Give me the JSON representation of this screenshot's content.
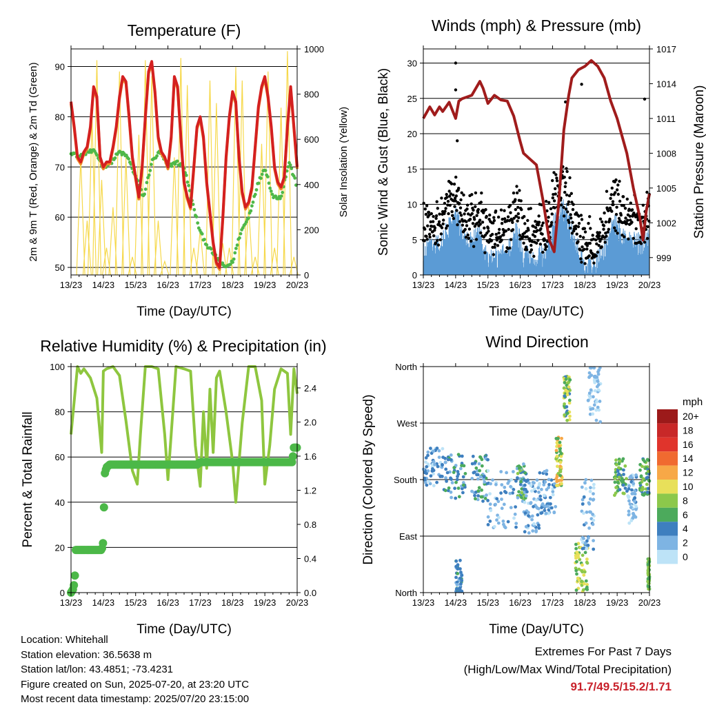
{
  "x_ticks": [
    "13/23",
    "14/23",
    "15/23",
    "16/23",
    "17/23",
    "18/23",
    "19/23",
    "20/23"
  ],
  "chart_data": [
    {
      "type": "line",
      "title": "Temperature (F)",
      "xlabel": "Time (Day/UTC)",
      "ylabel": "2m & 9m T (Red, Orange) & 2m Td (Green)",
      "y2label": "Solar Insolation (Yellow)",
      "ylim": [
        48.5,
        93.5
      ],
      "y2lim": [
        0,
        1000
      ],
      "yticks": [
        50,
        60,
        70,
        80,
        90
      ],
      "y2ticks": [
        0,
        200,
        400,
        600,
        800,
        1000
      ],
      "colors": {
        "t2m": "#d42020",
        "t9m": "#f08a28",
        "td": "#4fb848",
        "solar": "#f6d84a"
      },
      "series": {
        "temp_x": [
          0,
          0.1,
          0.2,
          0.3,
          0.4,
          0.5,
          0.6,
          0.7,
          0.8,
          0.9,
          1.0,
          1.1,
          1.2,
          1.3,
          1.4,
          1.5,
          1.6,
          1.7,
          1.8,
          1.9,
          2.0,
          2.1,
          2.2,
          2.3,
          2.4,
          2.5,
          2.6,
          2.7,
          2.8,
          2.9,
          3.0,
          3.1,
          3.2,
          3.3,
          3.4,
          3.5,
          3.6,
          3.7,
          3.8,
          3.9,
          4.0,
          4.1,
          4.2,
          4.3,
          4.4,
          4.5,
          4.6,
          4.7,
          4.8,
          4.9,
          5.0,
          5.1,
          5.2,
          5.3,
          5.4,
          5.5,
          5.6,
          5.7,
          5.8,
          5.9,
          6.0,
          6.1,
          6.2,
          6.3,
          6.4,
          6.5,
          6.6,
          6.7,
          6.8,
          6.9,
          7.0
        ],
        "temp_y": [
          83,
          78,
          72,
          71,
          73,
          74,
          78,
          86,
          84,
          72,
          70,
          71,
          71,
          74,
          78,
          84,
          88,
          87,
          80,
          72,
          68,
          64,
          70,
          80,
          89,
          91,
          85,
          76,
          73,
          72,
          70,
          76,
          88,
          86,
          76,
          67,
          64,
          62,
          70,
          78,
          80,
          76,
          67,
          61,
          55,
          51,
          50,
          60,
          72,
          80,
          85,
          83,
          72,
          65,
          62,
          63,
          66,
          74,
          82,
          86,
          88,
          84,
          78,
          70,
          67,
          66,
          68,
          78,
          86,
          78,
          70
        ],
        "dew_x": [
          0,
          0.25,
          0.5,
          0.75,
          1.0,
          1.25,
          1.5,
          1.75,
          2.0,
          2.25,
          2.5,
          2.75,
          3.0,
          3.25,
          3.5,
          3.75,
          4.0,
          4.25,
          4.5,
          4.75,
          5.0,
          5.25,
          5.5,
          5.75,
          6.0,
          6.25,
          6.5,
          6.75,
          7.0
        ],
        "dew_y": [
          73,
          72,
          73,
          73,
          70,
          71,
          73,
          72,
          68,
          64,
          71,
          73,
          70,
          71,
          70,
          63,
          57,
          54,
          52,
          50,
          51,
          57,
          60,
          66,
          70,
          64,
          64,
          71,
          66
        ],
        "solar_x": [
          0.3,
          0.5,
          0.65,
          0.8,
          0.95,
          1.1,
          1.3,
          1.5,
          1.7,
          1.9,
          2.1,
          2.3,
          2.5,
          2.7,
          2.9,
          3.2,
          3.4,
          3.6,
          3.8,
          4.0,
          4.3,
          4.5,
          4.7,
          4.9,
          5.1,
          5.3,
          5.5,
          5.7,
          5.9,
          6.1,
          6.3,
          6.5,
          6.7,
          6.9
        ],
        "solar_y": [
          520,
          240,
          700,
          950,
          420,
          120,
          300,
          900,
          520,
          80,
          620,
          950,
          880,
          240,
          60,
          520,
          960,
          840,
          120,
          200,
          860,
          760,
          140,
          120,
          920,
          860,
          300,
          80,
          580,
          900,
          120,
          740,
          990,
          80
        ]
      }
    },
    {
      "type": "line",
      "title": "Winds (mph) & Pressure (mb)",
      "xlabel": "Time (Day/UTC)",
      "ylabel": "Sonic Wind & Gust (Blue, Black)",
      "y2label": "Station Pressure (Maroon)",
      "ylim": [
        0,
        32
      ],
      "y2lim": [
        997.5,
        1017
      ],
      "yticks": [
        0,
        5,
        10,
        15,
        20,
        25,
        30
      ],
      "y2ticks": [
        999,
        1002,
        1005,
        1008,
        1011,
        1014,
        1017
      ],
      "colors": {
        "wind": "#5b9bd5",
        "gust": "#000000",
        "pressure": "#a01c1c"
      },
      "series": {
        "pressure_x": [
          0,
          0.1,
          0.2,
          0.35,
          0.5,
          0.6,
          0.7,
          0.8,
          1.0,
          1.1,
          1.2,
          1.5,
          1.75,
          1.85,
          2.0,
          2.2,
          2.4,
          2.6,
          2.8,
          3.0,
          3.1,
          3.3,
          3.5,
          3.7,
          3.9,
          4.05,
          4.2,
          4.35,
          4.5,
          4.6,
          4.8,
          5.0,
          5.2,
          5.4,
          5.6,
          5.8,
          6.0,
          6.3,
          6.5,
          6.7,
          6.8,
          6.9,
          7.0
        ],
        "pressure_y": [
          1011,
          1011.5,
          1012,
          1011.3,
          1012,
          1011.6,
          1012,
          1012.4,
          1011,
          1012.5,
          1012.7,
          1013,
          1014.2,
          1013.6,
          1012.3,
          1013,
          1012.6,
          1012.5,
          1011.2,
          1009,
          1008,
          1007.5,
          1007,
          1004,
          1000.5,
          999.5,
          1004,
          1010,
          1013,
          1014.5,
          1015.2,
          1015.5,
          1016,
          1015.5,
          1014.5,
          1012.5,
          1011,
          1008,
          1005,
          1002.5,
          1000.5,
          1003,
          1004.5
        ],
        "gust_points": [
          [
            1.0,
            30
          ],
          [
            1.0,
            26.2
          ],
          [
            6.85,
            24.9
          ],
          [
            4.4,
            24.5
          ],
          [
            4.9,
            27
          ],
          [
            1.05,
            19
          ]
        ]
      }
    },
    {
      "type": "line",
      "title": "Relative Humidity (%) & Precipitation (in)",
      "xlabel": "Time (Day/UTC)",
      "ylabel": "Percent & Total Rainfall",
      "ylim": [
        0,
        100
      ],
      "y2lim": [
        0,
        2.65
      ],
      "yticks": [
        0,
        20,
        40,
        60,
        80,
        100
      ],
      "y2ticks": [
        0.0,
        0.4,
        0.8,
        1.2,
        1.6,
        2.0,
        2.4
      ],
      "y2tick_labels": [
        "0.0",
        "0.4",
        "0.8",
        "1.2",
        "1.6",
        "2.0",
        "2.4"
      ],
      "colors": {
        "rh": "#8ec63f",
        "precip": "#4cb848"
      },
      "series": {
        "rh_x": [
          0,
          0.1,
          0.2,
          0.3,
          0.4,
          0.6,
          0.8,
          0.95,
          1.0,
          1.1,
          1.3,
          1.5,
          1.7,
          1.9,
          2.05,
          2.15,
          2.3,
          2.5,
          2.7,
          2.9,
          3.0,
          3.1,
          3.25,
          3.5,
          3.7,
          3.85,
          4.0,
          4.1,
          4.2,
          4.3,
          4.4,
          4.5,
          4.6,
          4.8,
          5.0,
          5.1,
          5.3,
          5.5,
          5.7,
          5.9,
          6.0,
          6.15,
          6.3,
          6.5,
          6.7,
          6.8,
          6.9,
          7.0
        ],
        "rh_y": [
          70,
          85,
          100,
          97,
          99,
          95,
          86,
          62,
          98,
          99,
          100,
          96,
          76,
          54,
          48,
          70,
          100,
          100,
          99,
          70,
          50,
          70,
          100,
          99,
          98,
          65,
          47,
          80,
          55,
          90,
          62,
          95,
          98,
          80,
          58,
          40,
          75,
          100,
          100,
          85,
          48,
          65,
          90,
          99,
          97,
          70,
          99,
          88
        ],
        "precip_x": [
          0,
          0.08,
          0.12,
          0.15,
          0.2,
          0.25,
          0.5,
          0.95,
          1.0,
          1.02,
          1.05,
          1.1,
          1.2,
          2.0,
          3.0,
          3.9,
          4.0,
          4.5,
          5.0,
          6.0,
          6.85,
          6.9,
          7.0
        ],
        "precip_y": [
          0,
          0.05,
          0.2,
          0.5,
          0.5,
          0.5,
          0.5,
          0.5,
          0.6,
          1.0,
          1.4,
          1.47,
          1.5,
          1.5,
          1.5,
          1.5,
          1.53,
          1.53,
          1.53,
          1.53,
          1.53,
          1.7,
          1.7
        ]
      }
    },
    {
      "type": "scatter",
      "title": "Wind Direction",
      "xlabel": "Time (Day/UTC)",
      "ylabel": "Direction (Colored By Speed)",
      "ylim": [
        0,
        360
      ],
      "yticks": [
        0,
        90,
        180,
        270,
        360
      ],
      "ytick_labels": [
        "North",
        "East",
        "South",
        "West",
        "North"
      ],
      "legend_title": "mph",
      "legend_labels": [
        "20+",
        "18",
        "16",
        "14",
        "12",
        "10",
        "8",
        "6",
        "4",
        "2",
        "0"
      ],
      "legend_colors": [
        "#9c1a1a",
        "#c82828",
        "#e0342c",
        "#f06a30",
        "#f7a847",
        "#e8e05a",
        "#8cc84b",
        "#4caa5c",
        "#3e7fbf",
        "#7eb4e3",
        "#bde3f7"
      ]
    }
  ],
  "info": {
    "location": "Location: Whitehall",
    "elevation": "Station elevation: 36.5638 m",
    "latlon": "Station lat/lon: 43.4851; -73.4231",
    "created": "Figure created on Sun, 2025-07-20, at 23:20 UTC",
    "timestamp": "Most recent data timestamp: 2025/07/20 23:15:00"
  },
  "extremes": {
    "heading": "Extremes For Past 7 Days",
    "subheading": "(High/Low/Max Wind/Total Precipitation)",
    "values": "91.7/49.5/15.2/1.71"
  }
}
